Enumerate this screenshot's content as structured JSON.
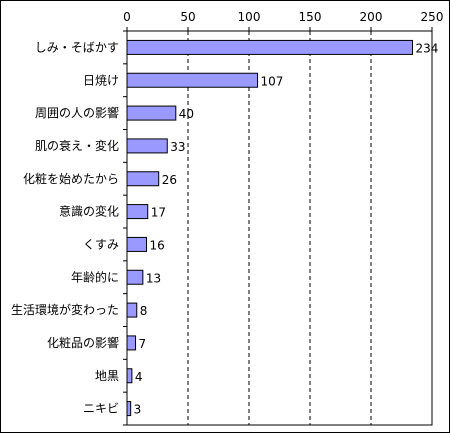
{
  "chart_data": {
    "type": "bar",
    "orientation": "horizontal",
    "categories": [
      "しみ・そばかす",
      "日焼け",
      "周囲の人の影響",
      "肌の衰え・変化",
      "化粧を始めたから",
      "意識の変化",
      "くすみ",
      "年齢的に",
      "生活環境が変わった",
      "化粧品の影響",
      "地黒",
      "ニキビ"
    ],
    "values": [
      234,
      107,
      40,
      33,
      26,
      17,
      16,
      13,
      8,
      7,
      4,
      3
    ],
    "xlim": [
      0,
      250
    ],
    "ticks": [
      0,
      50,
      100,
      150,
      200,
      250
    ],
    "tick_labels": [
      "0",
      "50",
      "100",
      "150",
      "200",
      "250"
    ],
    "axis_position": "top",
    "grid": "vertical dashed",
    "data_labels": true,
    "legend": "none",
    "colors": {
      "bar_fill": "#9999ff",
      "bar_stroke": "#000000",
      "grid": "#000000",
      "frame": "#000000",
      "background": "#ffffff"
    }
  }
}
